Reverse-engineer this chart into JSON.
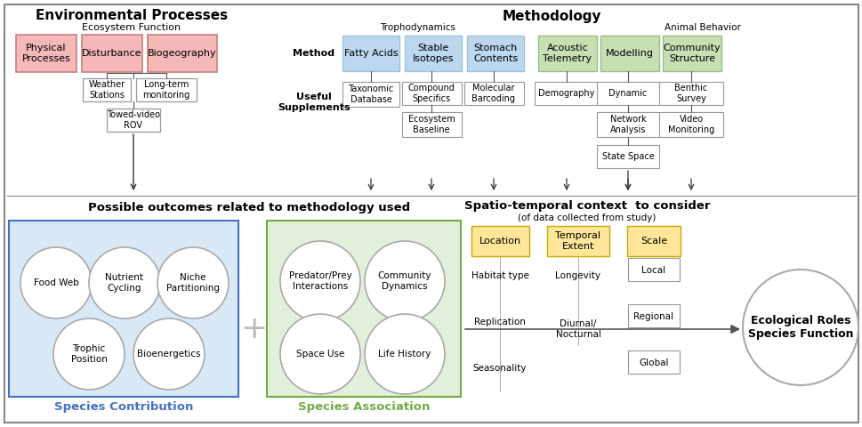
{
  "title_env": "Environmental Processes",
  "subtitle_env": "Ecosystem Function",
  "title_meth": "Methodology",
  "subtitle_tropho": "Trophodynamics",
  "subtitle_animal": "Animal Behavior",
  "title_outcomes": "Possible outcomes related to methodology used",
  "title_spatiotemporal": "Spatio-temporal context  to consider",
  "subtitle_spatiotemporal": "(of data collected from study)",
  "title_ecological": "Ecological Roles\nSpecies Function",
  "label_method": "Method",
  "label_useful": "Useful\nSupplements",
  "label_species_contrib": "Species Contribution",
  "label_species_assoc": "Species Association",
  "pink_color": "#F4B8B8",
  "pink_border": "#C88080",
  "blue_method_color": "#BDD7EE",
  "blue_method_border": "#9EC4D8",
  "green_method_color": "#C6E0B4",
  "green_method_border": "#9ABD87",
  "blue_bg_color": "#D9E8F5",
  "blue_bg_border": "#4472C4",
  "green_bg_color": "#E2EFDA",
  "green_bg_border": "#70AD47",
  "location_color": "#FFE699",
  "location_border": "#C7A800",
  "outer_border": "#888888",
  "white_box_color": "#FFFFFF",
  "white_box_border": "#999999"
}
